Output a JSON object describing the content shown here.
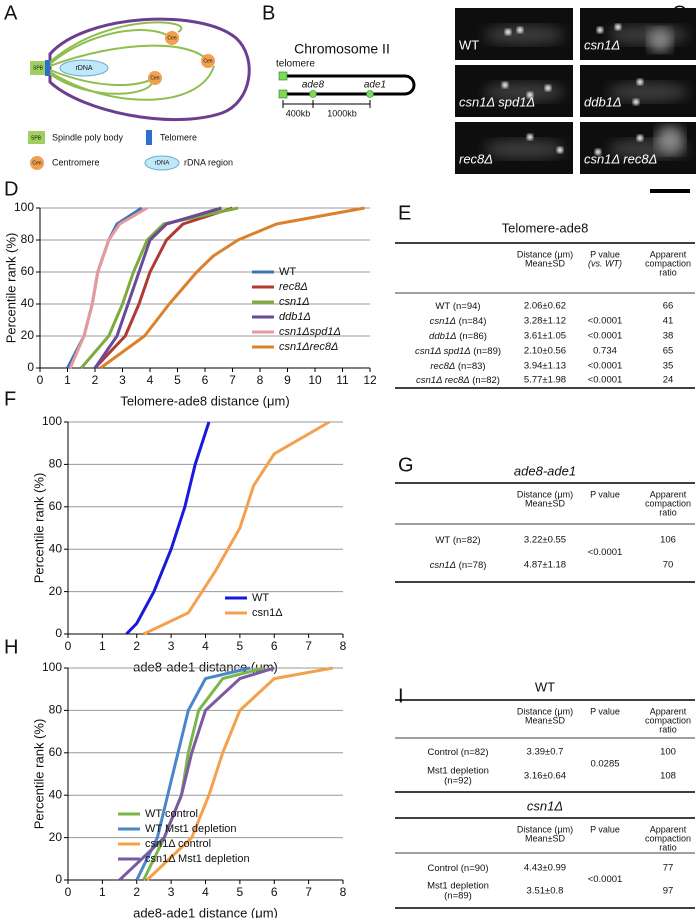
{
  "panel_labels": [
    "A",
    "B",
    "C",
    "D",
    "E",
    "F",
    "G",
    "H",
    "I"
  ],
  "diagram_a": {
    "spb": "SPB",
    "rdna": "rDNA",
    "centromere": "Cen",
    "legend": [
      "Spindle poly body",
      "Telomere",
      "Centromere",
      "rDNA region"
    ]
  },
  "diagram_b": {
    "title": "Chromosome II",
    "telomere": "telomere",
    "loci": [
      "ade8",
      "ade1"
    ],
    "distances": [
      "400kb",
      "1000kb"
    ]
  },
  "micrographs": [
    "WT",
    "csn1Δ",
    "csn1Δ spd1Δ",
    "ddb1Δ",
    "rec8Δ",
    "csn1Δ rec8Δ"
  ],
  "chart_data": [
    {
      "type": "line",
      "xlabel": "Telomere-ade8 distance (μm)",
      "ylabel": "Percentile rank (%)",
      "xlim": [
        0,
        12
      ],
      "xticks": [
        0,
        1,
        2,
        3,
        4,
        5,
        6,
        7,
        8,
        9,
        10,
        11,
        12
      ],
      "ylim": [
        0,
        100
      ],
      "yticks": [
        0,
        20,
        40,
        60,
        80,
        100
      ],
      "grid": true,
      "legend": "lower right",
      "series": [
        {
          "name": "WT",
          "color": "#3d74b8",
          "x": [
            1.0,
            1.6,
            1.9,
            2.1,
            2.5,
            2.8,
            3.7
          ],
          "values": [
            0,
            20,
            40,
            60,
            80,
            90,
            100
          ]
        },
        {
          "name": "rec8Δ",
          "color": "#b03a34",
          "x": [
            2.0,
            3.1,
            3.6,
            4.0,
            4.6,
            5.2,
            7.0
          ],
          "values": [
            0,
            20,
            40,
            60,
            80,
            90,
            100
          ]
        },
        {
          "name": "csn1Δ",
          "color": "#7fab3d",
          "x": [
            1.5,
            2.5,
            3.0,
            3.4,
            3.9,
            4.5,
            7.2
          ],
          "values": [
            0,
            20,
            40,
            60,
            80,
            90,
            100
          ]
        },
        {
          "name": "ddb1Δ",
          "color": "#6a4a96",
          "x": [
            2.0,
            2.8,
            3.2,
            3.6,
            4.0,
            4.6,
            6.6
          ],
          "values": [
            0,
            20,
            40,
            60,
            80,
            90,
            100
          ]
        },
        {
          "name": "csn1Δspd1Δ",
          "color": "#e8999c",
          "x": [
            1.1,
            1.6,
            1.9,
            2.1,
            2.5,
            2.9,
            3.9
          ],
          "values": [
            0,
            20,
            40,
            60,
            80,
            90,
            100
          ]
        },
        {
          "name": "csn1Δrec8Δ",
          "color": "#d9822b",
          "x": [
            2.2,
            3.8,
            4.7,
            5.7,
            6.3,
            7.2,
            8.6,
            11.8
          ],
          "values": [
            0,
            20,
            40,
            60,
            70,
            80,
            90,
            100
          ]
        }
      ]
    },
    {
      "type": "line",
      "xlabel": "ade8-ade1 distance (μm)",
      "ylabel": "Percentile rank (%)",
      "xlim": [
        0,
        8
      ],
      "xticks": [
        0,
        1,
        2,
        3,
        4,
        5,
        6,
        7,
        8
      ],
      "ylim": [
        0,
        100
      ],
      "yticks": [
        0,
        20,
        40,
        60,
        80,
        100
      ],
      "grid": true,
      "legend": "lower right",
      "series": [
        {
          "name": "WT",
          "color": "#1a1adb",
          "x": [
            1.7,
            2.0,
            2.5,
            3.0,
            3.4,
            3.7,
            4.1
          ],
          "values": [
            0,
            5,
            20,
            40,
            60,
            80,
            100
          ]
        },
        {
          "name": "csn1Δ",
          "color": "#f4a050",
          "x": [
            2.2,
            3.5,
            4.3,
            5.0,
            5.4,
            6.0,
            7.6
          ],
          "values": [
            0,
            10,
            30,
            50,
            70,
            85,
            100
          ]
        }
      ]
    },
    {
      "type": "line",
      "xlabel": "ade8-ade1 distance (μm)",
      "ylabel": "Percentile rank (%)",
      "xlim": [
        0,
        8
      ],
      "xticks": [
        0,
        1,
        2,
        3,
        4,
        5,
        6,
        7,
        8
      ],
      "ylim": [
        0,
        100
      ],
      "yticks": [
        0,
        20,
        40,
        60,
        80,
        100
      ],
      "grid": true,
      "legend": "lower center",
      "series": [
        {
          "name": "WT control",
          "color": "#7ab648",
          "x": [
            2.2,
            2.8,
            3.3,
            3.5,
            3.8,
            4.5,
            5.7
          ],
          "values": [
            0,
            20,
            40,
            60,
            80,
            95,
            100
          ]
        },
        {
          "name": "WT Mst1 depletion",
          "color": "#4a86c8",
          "x": [
            2.0,
            2.6,
            2.9,
            3.2,
            3.5,
            4.0,
            5.3
          ],
          "values": [
            0,
            20,
            40,
            60,
            80,
            95,
            100
          ]
        },
        {
          "name": "csn1Δ control",
          "color": "#f5a04a",
          "x": [
            2.3,
            3.6,
            4.1,
            4.5,
            5.0,
            6.0,
            7.7
          ],
          "values": [
            0,
            20,
            40,
            60,
            80,
            95,
            100
          ]
        },
        {
          "name": "csn1Δ Mst1 depletion",
          "color": "#7a5aa0",
          "x": [
            1.5,
            2.8,
            3.3,
            3.6,
            4.0,
            5.0,
            6.0
          ],
          "values": [
            0,
            20,
            40,
            60,
            80,
            95,
            100
          ]
        }
      ]
    }
  ],
  "tables": [
    {
      "title": "Telomere-ade8",
      "headers": [
        [
          "Distance (μm)",
          "Mean±SD"
        ],
        [
          "P value",
          "(vs. WT)"
        ],
        [
          "Apparent",
          "compaction",
          "ratio"
        ]
      ],
      "rows": [
        {
          "genotype": "WT",
          "n": "(n=94)",
          "distance": "2.06±0.62",
          "ratio": 66
        },
        {
          "genotype": "csn1Δ",
          "n": "(n=84)",
          "distance": "3.28±1.12",
          "p_value": "<0.0001",
          "ratio": 41
        },
        {
          "genotype": "ddb1Δ",
          "n": "(n=86)",
          "distance": "3.61±1.05",
          "p_value": "<0.0001",
          "ratio": 38
        },
        {
          "genotype": "csn1Δ spd1Δ",
          "n": "(n=89)",
          "distance": "2.10±0.56",
          "p_value": "0.734",
          "ratio": 65
        },
        {
          "genotype": "rec8Δ",
          "n": "(n=83)",
          "distance": "3.94±1.13",
          "p_value": "<0.0001",
          "ratio": 35
        },
        {
          "genotype": "csn1Δ rec8Δ",
          "n": "(n=82)",
          "distance": "5.77±1.98",
          "p_value": "<0.0001",
          "ratio": 24
        }
      ]
    },
    {
      "title": "ade8-ade1",
      "p_value": "<0.0001",
      "headers": [
        [
          "Distance (μm)",
          "Mean±SD"
        ],
        [
          "P value"
        ],
        [
          "Apparent",
          "compaction",
          "ratio"
        ]
      ],
      "rows": [
        {
          "genotype": "WT",
          "n": "(n=82)",
          "distance": "3.22±0.55",
          "ratio": 106
        },
        {
          "genotype": "csn1Δ",
          "n": "(n=78)",
          "distance": "4.87±1.18",
          "ratio": 70
        }
      ]
    },
    {
      "title": "WT",
      "p_value": "0.0285",
      "headers": [
        [
          "Distance (μm)",
          "Mean±SD"
        ],
        [
          "P value"
        ],
        [
          "Apparent",
          "compaction",
          "ratio"
        ]
      ],
      "rows": [
        {
          "genotype": "Control",
          "n": "(n=82)",
          "distance": "3.39±0.7",
          "ratio": 100
        },
        {
          "genotype": "Mst1 depletion",
          "n": "(n=92)",
          "distance": "3.16±0.64",
          "ratio": 108
        }
      ]
    },
    {
      "title": "csn1Δ",
      "p_value": "<0.0001",
      "headers": [
        [
          "Distance (μm)",
          "Mean±SD"
        ],
        [
          "P value"
        ],
        [
          "Apparent",
          "compaction",
          "ratio"
        ]
      ],
      "rows": [
        {
          "genotype": "Control",
          "n": "(n=90)",
          "distance": "4.43±0.99",
          "ratio": 77
        },
        {
          "genotype": "Mst1 depletion",
          "n": "(n=89)",
          "distance": "3.51±0.8",
          "ratio": 97
        }
      ]
    }
  ]
}
